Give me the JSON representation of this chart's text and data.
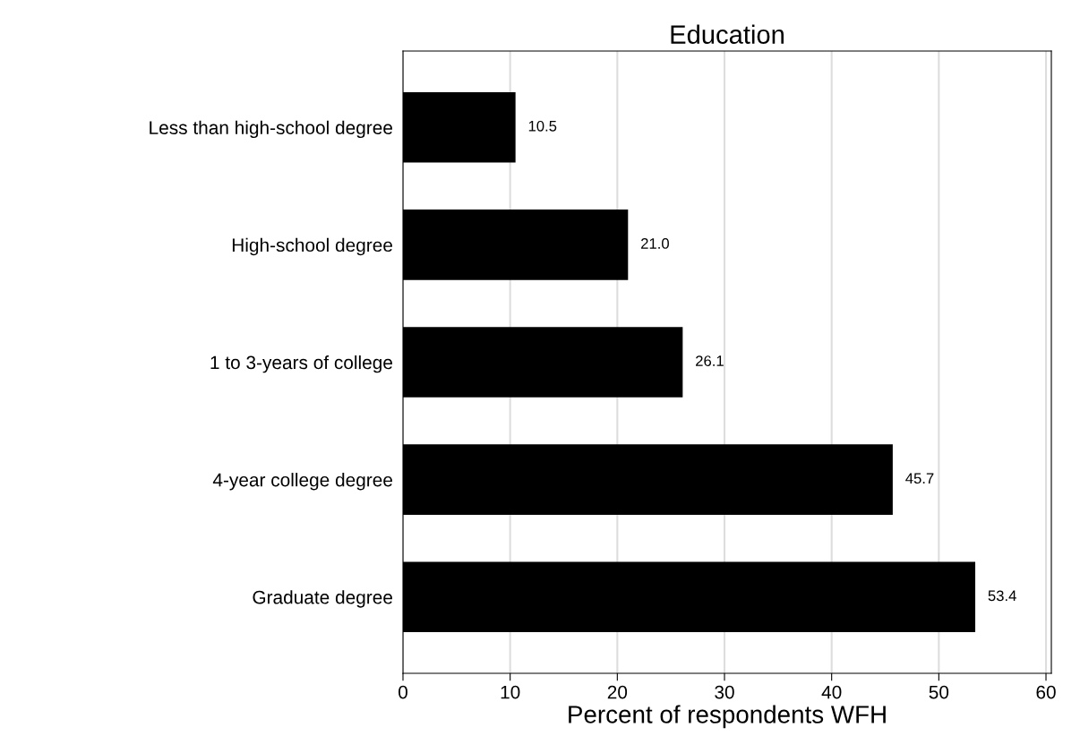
{
  "chart_data": {
    "type": "bar",
    "orientation": "horizontal",
    "title": "Education",
    "xlabel": "Percent of respondents WFH",
    "categories": [
      "Less than high-school degree",
      "High-school degree",
      "1 to 3-years of college",
      "4-year college degree",
      "Graduate degree"
    ],
    "values": [
      10.5,
      21.0,
      26.1,
      45.7,
      53.4
    ],
    "value_labels": [
      "10.5",
      "21.0",
      "26.1",
      "45.7",
      "53.4"
    ],
    "color": "#000000",
    "xlim": [
      0,
      60.5
    ],
    "xticks": [
      0,
      10,
      20,
      30,
      40,
      50,
      60
    ],
    "grid": "x"
  }
}
